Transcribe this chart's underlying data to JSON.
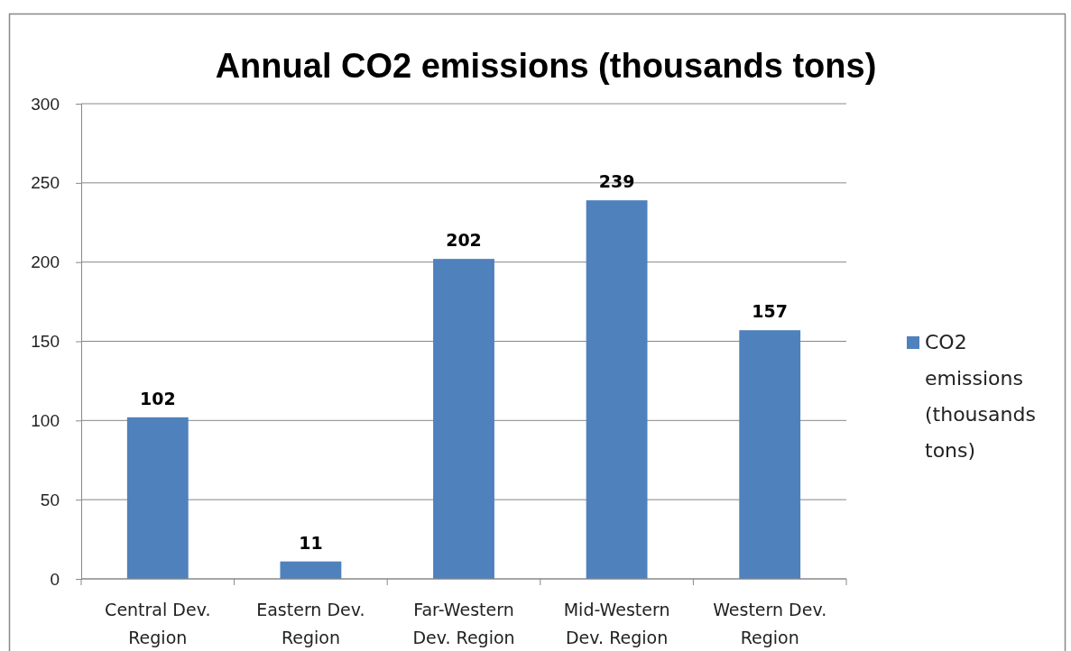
{
  "chart_data": {
    "type": "bar",
    "title": "Annual CO2 emissions (thousands tons)",
    "categories": [
      "Central Dev. Region",
      "Eastern Dev. Region",
      "Far-Western Dev. Region",
      "Mid-Western Dev. Region",
      "Western Dev. Region"
    ],
    "series": [
      {
        "name": "CO2 emissions (thousands tons)",
        "color": "#4f81bd",
        "values": [
          102,
          11,
          202,
          239,
          157
        ]
      }
    ],
    "ylim": [
      0,
      300
    ],
    "yticks": [
      0,
      50,
      100,
      150,
      200,
      250,
      300
    ],
    "grid": "y",
    "legend": "right",
    "data_labels": true
  }
}
